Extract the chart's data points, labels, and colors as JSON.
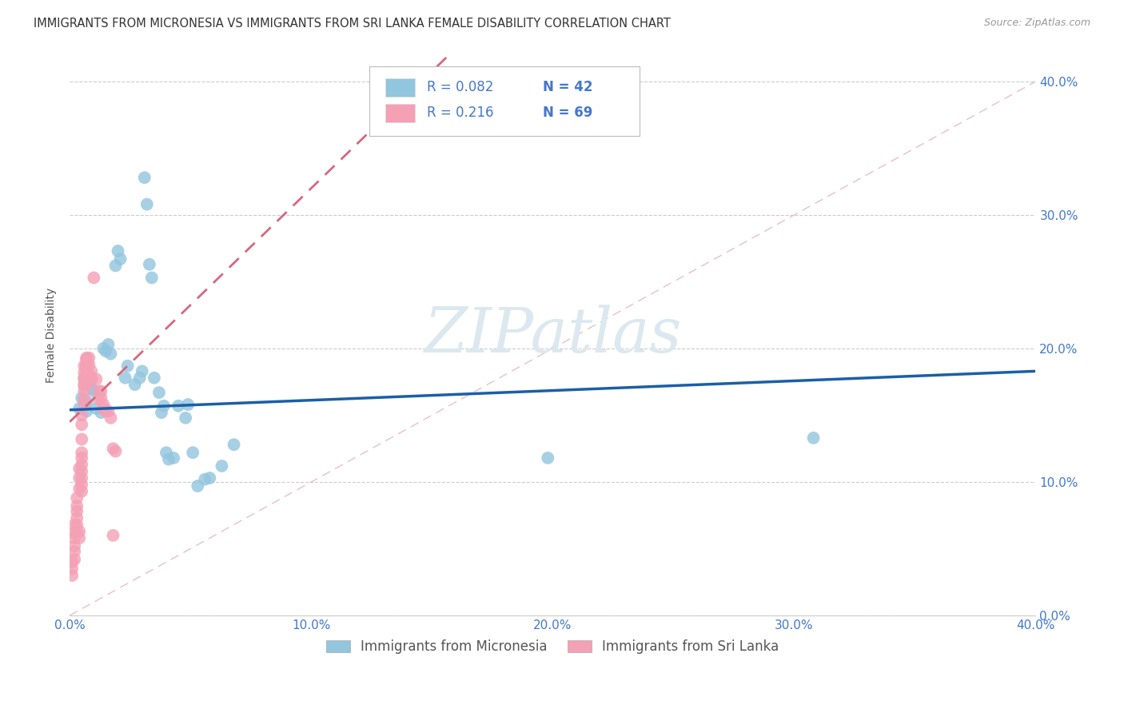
{
  "title": "IMMIGRANTS FROM MICRONESIA VS IMMIGRANTS FROM SRI LANKA FEMALE DISABILITY CORRELATION CHART",
  "source": "Source: ZipAtlas.com",
  "xlabel_ticks": [
    "0.0%",
    "10.0%",
    "20.0%",
    "30.0%",
    "40.0%"
  ],
  "ylabel_ticks": [
    "0.0%",
    "10.0%",
    "20.0%",
    "30.0%",
    "40.0%"
  ],
  "xlim": [
    0.0,
    0.4
  ],
  "ylim": [
    0.0,
    0.42
  ],
  "ylabel": "Female Disability",
  "legend_labels": [
    "Immigrants from Micronesia",
    "Immigrants from Sri Lanka"
  ],
  "legend_r_blue": "R = 0.082",
  "legend_n_blue": "N = 42",
  "legend_r_pink": "R = 0.216",
  "legend_n_pink": "N = 69",
  "color_blue": "#92c5de",
  "color_pink": "#f4a0b5",
  "color_blue_line": "#1a5fa8",
  "color_pink_line": "#d4697e",
  "color_diag": "#e8c0c8",
  "watermark_color": "#dce8f0",
  "micronesia_points": [
    [
      0.004,
      0.155
    ],
    [
      0.005,
      0.163
    ],
    [
      0.007,
      0.153
    ],
    [
      0.007,
      0.16
    ],
    [
      0.009,
      0.17
    ],
    [
      0.01,
      0.168
    ],
    [
      0.011,
      0.155
    ],
    [
      0.013,
      0.152
    ],
    [
      0.014,
      0.2
    ],
    [
      0.015,
      0.198
    ],
    [
      0.016,
      0.203
    ],
    [
      0.017,
      0.196
    ],
    [
      0.019,
      0.262
    ],
    [
      0.02,
      0.273
    ],
    [
      0.021,
      0.267
    ],
    [
      0.023,
      0.178
    ],
    [
      0.024,
      0.187
    ],
    [
      0.027,
      0.173
    ],
    [
      0.029,
      0.178
    ],
    [
      0.03,
      0.183
    ],
    [
      0.031,
      0.328
    ],
    [
      0.032,
      0.308
    ],
    [
      0.033,
      0.263
    ],
    [
      0.034,
      0.253
    ],
    [
      0.035,
      0.178
    ],
    [
      0.037,
      0.167
    ],
    [
      0.038,
      0.152
    ],
    [
      0.039,
      0.157
    ],
    [
      0.04,
      0.122
    ],
    [
      0.041,
      0.117
    ],
    [
      0.043,
      0.118
    ],
    [
      0.045,
      0.157
    ],
    [
      0.048,
      0.148
    ],
    [
      0.049,
      0.158
    ],
    [
      0.051,
      0.122
    ],
    [
      0.053,
      0.097
    ],
    [
      0.056,
      0.102
    ],
    [
      0.058,
      0.103
    ],
    [
      0.063,
      0.112
    ],
    [
      0.068,
      0.128
    ],
    [
      0.198,
      0.118
    ],
    [
      0.308,
      0.133
    ]
  ],
  "srilanka_points": [
    [
      0.001,
      0.035
    ],
    [
      0.001,
      0.04
    ],
    [
      0.001,
      0.03
    ],
    [
      0.002,
      0.042
    ],
    [
      0.002,
      0.048
    ],
    [
      0.002,
      0.052
    ],
    [
      0.002,
      0.058
    ],
    [
      0.002,
      0.062
    ],
    [
      0.002,
      0.068
    ],
    [
      0.003,
      0.062
    ],
    [
      0.003,
      0.068
    ],
    [
      0.003,
      0.073
    ],
    [
      0.003,
      0.078
    ],
    [
      0.003,
      0.082
    ],
    [
      0.003,
      0.088
    ],
    [
      0.004,
      0.058
    ],
    [
      0.004,
      0.063
    ],
    [
      0.004,
      0.095
    ],
    [
      0.004,
      0.103
    ],
    [
      0.004,
      0.11
    ],
    [
      0.005,
      0.093
    ],
    [
      0.005,
      0.098
    ],
    [
      0.005,
      0.103
    ],
    [
      0.005,
      0.108
    ],
    [
      0.005,
      0.113
    ],
    [
      0.005,
      0.118
    ],
    [
      0.005,
      0.122
    ],
    [
      0.005,
      0.132
    ],
    [
      0.005,
      0.143
    ],
    [
      0.005,
      0.15
    ],
    [
      0.006,
      0.158
    ],
    [
      0.006,
      0.162
    ],
    [
      0.006,
      0.168
    ],
    [
      0.006,
      0.173
    ],
    [
      0.006,
      0.178
    ],
    [
      0.006,
      0.172
    ],
    [
      0.006,
      0.177
    ],
    [
      0.006,
      0.182
    ],
    [
      0.006,
      0.187
    ],
    [
      0.007,
      0.182
    ],
    [
      0.007,
      0.188
    ],
    [
      0.007,
      0.193
    ],
    [
      0.007,
      0.187
    ],
    [
      0.007,
      0.192
    ],
    [
      0.007,
      0.187
    ],
    [
      0.007,
      0.192
    ],
    [
      0.008,
      0.188
    ],
    [
      0.008,
      0.193
    ],
    [
      0.008,
      0.178
    ],
    [
      0.008,
      0.175
    ],
    [
      0.008,
      0.18
    ],
    [
      0.009,
      0.177
    ],
    [
      0.009,
      0.183
    ],
    [
      0.009,
      0.177
    ],
    [
      0.009,
      0.178
    ],
    [
      0.01,
      0.253
    ],
    [
      0.011,
      0.177
    ],
    [
      0.012,
      0.168
    ],
    [
      0.012,
      0.162
    ],
    [
      0.013,
      0.163
    ],
    [
      0.013,
      0.168
    ],
    [
      0.014,
      0.158
    ],
    [
      0.014,
      0.155
    ],
    [
      0.015,
      0.153
    ],
    [
      0.016,
      0.153
    ],
    [
      0.017,
      0.148
    ],
    [
      0.018,
      0.125
    ],
    [
      0.019,
      0.123
    ],
    [
      0.018,
      0.06
    ]
  ]
}
